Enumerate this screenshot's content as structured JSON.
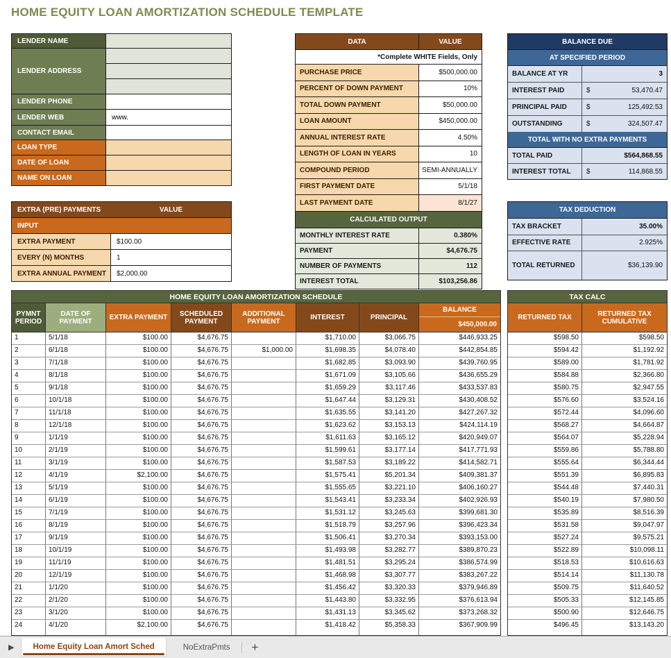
{
  "title": "HOME EQUITY LOAN AMORTIZATION SCHEDULE TEMPLATE",
  "palette": {
    "title_green": "#7C8C4F",
    "dark_olive": "#4F5B38",
    "olive": "#6F7D53",
    "sage_header": "#9CAE7D",
    "olive_title_bar": "#57653F",
    "orange": "#C9691D",
    "brown": "#84491B",
    "tan": "#F6D8AC",
    "peach": "#FAE6CE",
    "pink": "#FBE4D4",
    "gray_green": "#E0E4D9",
    "sage_light": "#E3E8DB",
    "navy": "#1F3A63",
    "medium_blue": "#3D6797",
    "light_blue": "#D9E2EE",
    "tab_brown": "#8B4513"
  },
  "lender": {
    "name_label": "LENDER NAME",
    "address_label": "LENDER ADDRESS",
    "phone_label": "LENDER PHONE",
    "web_label": "LENDER WEB",
    "web_value": "www.",
    "email_label": "CONTACT EMAIL",
    "loan_type_label": "LOAN TYPE",
    "date_of_loan_label": "DATE OF LOAN",
    "name_on_loan_label": "NAME ON LOAN"
  },
  "extra_payments": {
    "title": "EXTRA (PRE) PAYMENTS",
    "value_header": "VALUE",
    "input_header": "INPUT",
    "rows": [
      {
        "label": "EXTRA PAYMENT",
        "value": "$100.00"
      },
      {
        "label": "EVERY (N) MONTHS",
        "value": "1"
      },
      {
        "label": "EXTRA ANNUAL PAYMENT",
        "value": "$2,000.00"
      }
    ]
  },
  "data_table": {
    "data_header": "DATA",
    "value_header": "VALUE",
    "note": "*Complete WHITE Fields, Only",
    "rows": [
      {
        "label": "PURCHASE PRICE",
        "value": "$500,000.00",
        "highlight": false
      },
      {
        "label": "PERCENT OF DOWN PAYMENT",
        "value": "10%",
        "highlight": false
      },
      {
        "label": "TOTAL DOWN PAYMENT",
        "value": "$50,000.00",
        "highlight": false
      },
      {
        "label": "LOAN AMOUNT",
        "value": "$450,000.00",
        "highlight": false
      },
      {
        "label": "ANNUAL INTEREST RATE",
        "value": "4.50%",
        "highlight": false
      },
      {
        "label": "LENGTH OF LOAN IN YEARS",
        "value": "10",
        "highlight": false
      },
      {
        "label": "COMPOUND PERIOD",
        "value": "SEMI-ANNUALLY",
        "highlight": false
      },
      {
        "label": "FIRST PAYMENT DATE",
        "value": "5/1/18",
        "highlight": false
      },
      {
        "label": "LAST PAYMENT DATE",
        "value": "8/1/27",
        "highlight": true
      }
    ],
    "calculated_header": "CALCULATED OUTPUT",
    "calculated_rows": [
      {
        "label": "MONTHLY INTEREST RATE",
        "value": "0.380%"
      },
      {
        "label": "PAYMENT",
        "value": "$4,676.75"
      },
      {
        "label": "NUMBER OF PAYMENTS",
        "value": "112"
      },
      {
        "label": "INTEREST TOTAL",
        "value": "$103,256.86"
      }
    ]
  },
  "balance_due": {
    "title": "BALANCE DUE",
    "sub1": "AT SPECIFIED PERIOD",
    "rows1": [
      {
        "label": "BALANCE AT YR",
        "currency": "",
        "amount": "3",
        "bold": true
      },
      {
        "label": "INTEREST PAID",
        "currency": "$",
        "amount": "53,470.47",
        "bold": false
      },
      {
        "label": "PRINCIPAL PAID",
        "currency": "$",
        "amount": "125,492.53",
        "bold": false
      },
      {
        "label": "OUTSTANDING",
        "currency": "$",
        "amount": "324,507.47",
        "bold": false
      }
    ],
    "sub2": "TOTAL WITH NO EXTRA PAYMENTS",
    "rows2": [
      {
        "label": "TOTAL PAID",
        "currency": "",
        "amount": "$564,868.55",
        "bold": true
      },
      {
        "label": "INTEREST TOTAL",
        "currency": "$",
        "amount": "114,868.55",
        "bold": false
      }
    ]
  },
  "tax_deduction": {
    "title": "TAX DEDUCTION",
    "rows": [
      {
        "label": "TAX BRACKET",
        "value": "35.00%",
        "bold": true,
        "tall": false
      },
      {
        "label": "EFFECTIVE RATE",
        "value": "2.925%",
        "bold": false,
        "tall": false
      },
      {
        "label": "TOTAL RETURNED",
        "value": "$36,139.90",
        "bold": false,
        "tall": true
      }
    ]
  },
  "schedule": {
    "title": "HOME EQUITY LOAN AMORTIZATION SCHEDULE",
    "headers": [
      "PYMNT PERIOD",
      "DATE OF PAYMENT",
      "EXTRA PAYMENT",
      "SCHEDULED PAYMENT",
      "ADDITIONAL PAYMENT",
      "INTEREST",
      "PRINCIPAL"
    ],
    "balance_header": "BALANCE",
    "balance_start": "$450,000.00",
    "rows": [
      [
        "1",
        "5/1/18",
        "$100.00",
        "$4,676.75",
        "",
        "$1,710.00",
        "$3,066.75",
        "$446,933.25"
      ],
      [
        "2",
        "6/1/18",
        "$100.00",
        "$4,676.75",
        "$1,000.00",
        "$1,698.35",
        "$4,078.40",
        "$442,854.85"
      ],
      [
        "3",
        "7/1/18",
        "$100.00",
        "$4,676.75",
        "",
        "$1,682.85",
        "$3,093.90",
        "$439,760.95"
      ],
      [
        "4",
        "8/1/18",
        "$100.00",
        "$4,676.75",
        "",
        "$1,671.09",
        "$3,105.66",
        "$436,655.29"
      ],
      [
        "5",
        "9/1/18",
        "$100.00",
        "$4,676.75",
        "",
        "$1,659.29",
        "$3,117.46",
        "$433,537.83"
      ],
      [
        "6",
        "10/1/18",
        "$100.00",
        "$4,676.75",
        "",
        "$1,647.44",
        "$3,129.31",
        "$430,408.52"
      ],
      [
        "7",
        "11/1/18",
        "$100.00",
        "$4,676.75",
        "",
        "$1,635.55",
        "$3,141.20",
        "$427,267.32"
      ],
      [
        "8",
        "12/1/18",
        "$100.00",
        "$4,676.75",
        "",
        "$1,623.62",
        "$3,153.13",
        "$424,114.19"
      ],
      [
        "9",
        "1/1/19",
        "$100.00",
        "$4,676.75",
        "",
        "$1,611.63",
        "$3,165.12",
        "$420,949.07"
      ],
      [
        "10",
        "2/1/19",
        "$100.00",
        "$4,676.75",
        "",
        "$1,599.61",
        "$3,177.14",
        "$417,771.93"
      ],
      [
        "11",
        "3/1/19",
        "$100.00",
        "$4,676.75",
        "",
        "$1,587.53",
        "$3,189.22",
        "$414,582.71"
      ],
      [
        "12",
        "4/1/19",
        "$2,100.00",
        "$4,676.75",
        "",
        "$1,575.41",
        "$5,201.34",
        "$409,381.37"
      ],
      [
        "13",
        "5/1/19",
        "$100.00",
        "$4,676.75",
        "",
        "$1,555.65",
        "$3,221.10",
        "$406,160.27"
      ],
      [
        "14",
        "6/1/19",
        "$100.00",
        "$4,676.75",
        "",
        "$1,543.41",
        "$3,233.34",
        "$402,926.93"
      ],
      [
        "15",
        "7/1/19",
        "$100.00",
        "$4,676.75",
        "",
        "$1,531.12",
        "$3,245.63",
        "$399,681.30"
      ],
      [
        "16",
        "8/1/19",
        "$100.00",
        "$4,676.75",
        "",
        "$1,518.79",
        "$3,257.96",
        "$396,423.34"
      ],
      [
        "17",
        "9/1/19",
        "$100.00",
        "$4,676.75",
        "",
        "$1,506.41",
        "$3,270.34",
        "$393,153.00"
      ],
      [
        "18",
        "10/1/19",
        "$100.00",
        "$4,676.75",
        "",
        "$1,493.98",
        "$3,282.77",
        "$389,870.23"
      ],
      [
        "19",
        "11/1/19",
        "$100.00",
        "$4,676.75",
        "",
        "$1,481.51",
        "$3,295.24",
        "$386,574.99"
      ],
      [
        "20",
        "12/1/19",
        "$100.00",
        "$4,676.75",
        "",
        "$1,468.98",
        "$3,307.77",
        "$383,267.22"
      ],
      [
        "21",
        "1/1/20",
        "$100.00",
        "$4,676.75",
        "",
        "$1,456.42",
        "$3,320.33",
        "$379,946.89"
      ],
      [
        "22",
        "2/1/20",
        "$100.00",
        "$4,676.75",
        "",
        "$1,443.80",
        "$3,332.95",
        "$376,613.94"
      ],
      [
        "23",
        "3/1/20",
        "$100.00",
        "$4,676.75",
        "",
        "$1,431.13",
        "$3,345.62",
        "$373,268.32"
      ],
      [
        "24",
        "4/1/20",
        "$2,100.00",
        "$4,676.75",
        "",
        "$1,418.42",
        "$5,358.33",
        "$367,909.99"
      ]
    ]
  },
  "tax_calc": {
    "title": "TAX CALC",
    "headers": [
      "RETURNED TAX",
      "RETURNED TAX CUMULATIVE"
    ],
    "rows": [
      [
        "$598.50",
        "$598.50"
      ],
      [
        "$594.42",
        "$1,192.92"
      ],
      [
        "$589.00",
        "$1,781.92"
      ],
      [
        "$584.88",
        "$2,366.80"
      ],
      [
        "$580.75",
        "$2,947.55"
      ],
      [
        "$576.60",
        "$3,524.16"
      ],
      [
        "$572.44",
        "$4,096.60"
      ],
      [
        "$568.27",
        "$4,664.87"
      ],
      [
        "$564.07",
        "$5,228.94"
      ],
      [
        "$559.86",
        "$5,788.80"
      ],
      [
        "$555.64",
        "$6,344.44"
      ],
      [
        "$551.39",
        "$6,895.83"
      ],
      [
        "$544.48",
        "$7,440.31"
      ],
      [
        "$540.19",
        "$7,980.50"
      ],
      [
        "$535.89",
        "$8,516.39"
      ],
      [
        "$531.58",
        "$9,047.97"
      ],
      [
        "$527.24",
        "$9,575.21"
      ],
      [
        "$522.89",
        "$10,098.11"
      ],
      [
        "$518.53",
        "$10,616.63"
      ],
      [
        "$514.14",
        "$11,130.78"
      ],
      [
        "$509.75",
        "$11,640.52"
      ],
      [
        "$505.33",
        "$12,145.85"
      ],
      [
        "$500.90",
        "$12,646.75"
      ],
      [
        "$496.45",
        "$13,143.20"
      ]
    ]
  },
  "tabs": {
    "scroll_glyph": "▶",
    "active": "Home Equity Loan Amort Sched",
    "inactive": "NoExtraPmts",
    "add": "+"
  }
}
